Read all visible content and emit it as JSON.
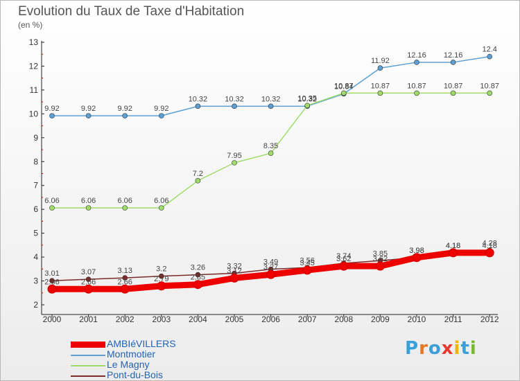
{
  "chart_data": {
    "type": "line",
    "title": "Evolution du Taux de Taxe d'Habitation",
    "ylabel": "(en %)",
    "x": [
      "2000",
      "2001",
      "2002",
      "2003",
      "2004",
      "2005",
      "2006",
      "2007",
      "2008",
      "2009",
      "2010",
      "2011",
      "2012"
    ],
    "ylim": [
      2,
      13
    ],
    "yticks": [
      "2",
      "3",
      "4",
      "5",
      "6",
      "7",
      "8",
      "9",
      "10",
      "11",
      "12",
      "13"
    ],
    "grid": false,
    "legend_position": "bottom-left",
    "series": [
      {
        "name": "AMBIéVILLERS",
        "color": "#ee0000",
        "values": [
          2.66,
          2.66,
          2.66,
          2.79,
          2.85,
          3.12,
          3.27,
          3.45,
          3.62,
          3.62,
          3.98,
          4.18,
          4.18
        ],
        "labels": [
          "2.66",
          "2.66",
          "2.66",
          "2.79",
          "2.85",
          "3.12",
          "3.27",
          "3.45",
          "3.62",
          "3.62",
          "3.98",
          "4.18",
          "4.18"
        ]
      },
      {
        "name": "Montmotier",
        "color": "#5b9fd5",
        "values": [
          9.92,
          9.92,
          9.92,
          9.92,
          10.32,
          10.32,
          10.32,
          10.32,
          10.84,
          11.92,
          12.16,
          12.16,
          12.4
        ],
        "labels": [
          "9.92",
          "9.92",
          "9.92",
          "9.92",
          "10.32",
          "10.32",
          "10.32",
          "10.32",
          "10.84",
          "11.92",
          "12.16",
          "12.16",
          "12.4"
        ]
      },
      {
        "name": "Le Magny",
        "color": "#9fdc6a",
        "values": [
          6.06,
          6.06,
          6.06,
          6.06,
          7.2,
          7.95,
          8.35,
          10.35,
          10.87,
          10.87,
          10.87,
          10.87,
          10.87
        ],
        "labels": [
          "6.06",
          "6.06",
          "6.06",
          "6.06",
          "7.2",
          "7.95",
          "8.35",
          "10.35",
          "10.87",
          "10.87",
          "10.87",
          "10.87",
          "10.87"
        ]
      },
      {
        "name": "Pont-du-Bois",
        "color": "#7a2a2a",
        "values": [
          3.01,
          3.07,
          3.13,
          3.2,
          3.26,
          3.32,
          3.49,
          3.56,
          3.74,
          3.85,
          3.98,
          4.18,
          4.28
        ],
        "labels": [
          "3.01",
          "3.07",
          "3.13",
          "3.2",
          "3.26",
          "3.32",
          "3.49",
          "3.56",
          "3.74",
          "3.85",
          "3.98",
          "4.18",
          "4.28"
        ]
      }
    ]
  },
  "logo": {
    "text": "Proxiti"
  }
}
